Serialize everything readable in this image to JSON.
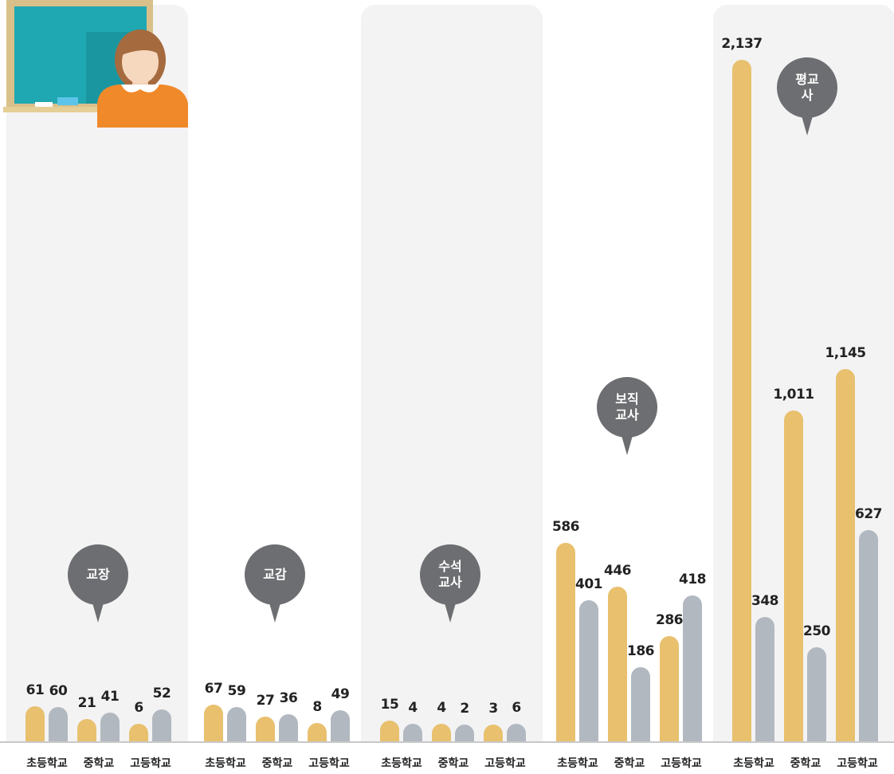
{
  "chart_data": [
    {
      "type": "bar",
      "title": "교장",
      "categories": [
        "초등학교",
        "중학교",
        "고등학교"
      ],
      "series": [
        {
          "color": "#e8c06e",
          "values": [
            61,
            21,
            6
          ]
        },
        {
          "color": "#b2b8c0",
          "values": [
            60,
            41,
            52
          ]
        }
      ]
    },
    {
      "type": "bar",
      "title": "교감",
      "categories": [
        "초등학교",
        "중학교",
        "고등학교"
      ],
      "series": [
        {
          "color": "#e8c06e",
          "values": [
            67,
            27,
            8
          ]
        },
        {
          "color": "#b2b8c0",
          "values": [
            59,
            36,
            49
          ]
        }
      ]
    },
    {
      "type": "bar",
      "title": "수석 교사",
      "categories": [
        "초등학교",
        "중학교",
        "고등학교"
      ],
      "series": [
        {
          "color": "#e8c06e",
          "values": [
            15,
            4,
            3
          ]
        },
        {
          "color": "#b2b8c0",
          "values": [
            4,
            2,
            6
          ]
        }
      ]
    },
    {
      "type": "bar",
      "title": "보직 교사",
      "categories": [
        "초등학교",
        "중학교",
        "고등학교"
      ],
      "series": [
        {
          "color": "#e8c06e",
          "values": [
            586,
            446,
            286
          ]
        },
        {
          "color": "#b2b8c0",
          "values": [
            401,
            186,
            418
          ]
        }
      ]
    },
    {
      "type": "bar",
      "title": "평교사",
      "categories": [
        "초등학교",
        "중학교",
        "고등학교"
      ],
      "series": [
        {
          "color": "#e8c06e",
          "values": [
            2137,
            1011,
            1145
          ],
          "value_labels": [
            "2,137",
            "1,011",
            "1,145"
          ]
        },
        {
          "color": "#b2b8c0",
          "values": [
            348,
            250,
            627
          ]
        }
      ]
    }
  ]
}
